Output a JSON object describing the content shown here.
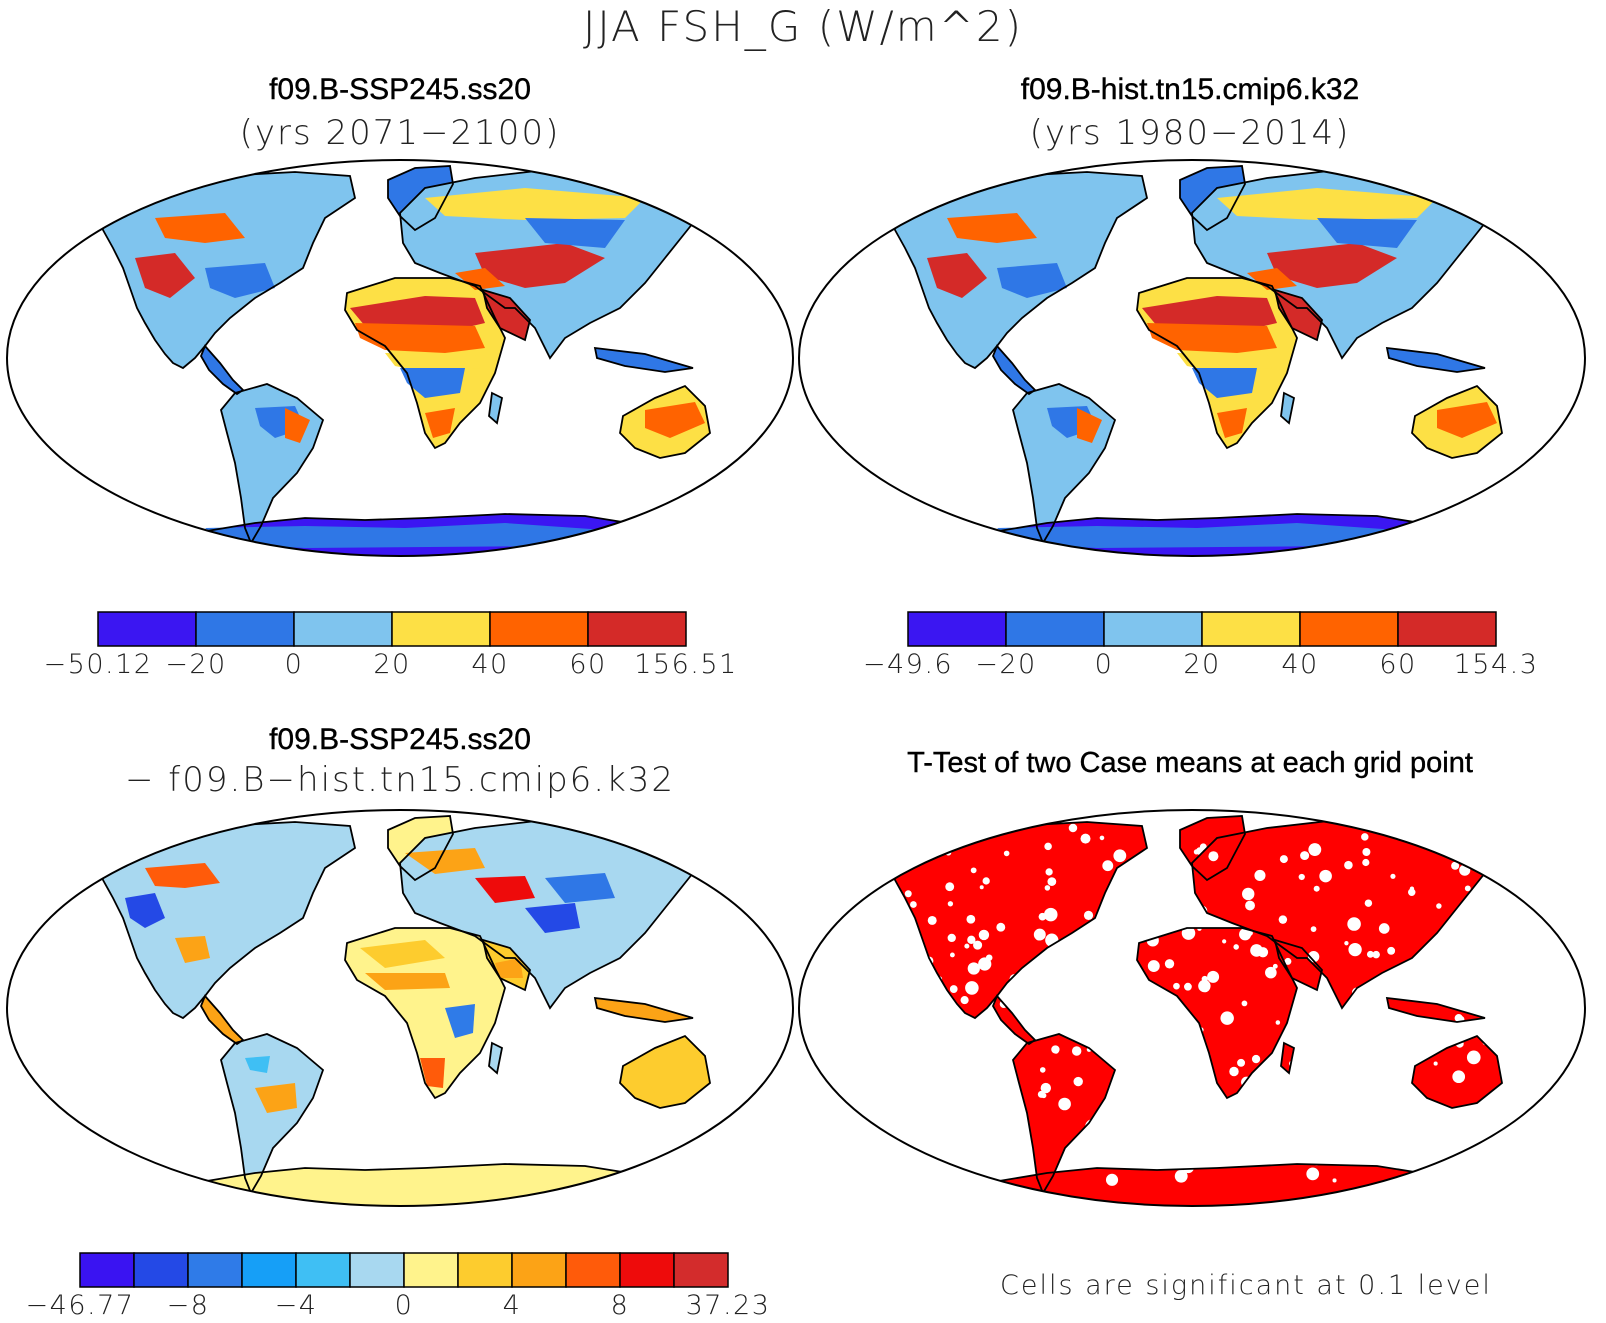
{
  "figure": {
    "title": "JJA FSH_G (W/m^2)",
    "note": "Cells are significant at 0.1 level"
  },
  "panels": [
    {
      "title": "f09.B-SSP245.ss20",
      "subtitle": "(yrs 2071−2100)",
      "kind": "field",
      "colorbar": {
        "colors": [
          "#3b16f2",
          "#2f77e6",
          "#7fc4ee",
          "#fde045",
          "#ff6300",
          "#d42a28"
        ],
        "labels": [
          "−50.12",
          "−20",
          "0",
          "20",
          "40",
          "60",
          "156.51"
        ]
      }
    },
    {
      "title": "f09.B-hist.tn15.cmip6.k32",
      "subtitle": "(yrs 1980−2014)",
      "kind": "field",
      "colorbar": {
        "colors": [
          "#3b16f2",
          "#2f77e6",
          "#7fc4ee",
          "#fde045",
          "#ff6300",
          "#d42a28"
        ],
        "labels": [
          "−49.6",
          "−20",
          "0",
          "20",
          "40",
          "60",
          "154.3"
        ]
      }
    },
    {
      "title": "f09.B-SSP245.ss20",
      "subtitle": "− f09.B−hist.tn15.cmip6.k32",
      "kind": "difference",
      "colorbar": {
        "colors": [
          "#3a13f2",
          "#2449e6",
          "#2f7be8",
          "#169ff7",
          "#3fbff4",
          "#a8d8f0",
          "#fff38c",
          "#fdcc2e",
          "#fca316",
          "#ff5b0a",
          "#ee0b0b",
          "#d32c2c"
        ],
        "labels": [
          "−46.77",
          "−8",
          "−4",
          "0",
          "4",
          "8",
          "37.23"
        ]
      }
    },
    {
      "title": "T-Test of two Case means at each grid point",
      "kind": "significance",
      "sig_color": "#ff0000"
    }
  ]
}
